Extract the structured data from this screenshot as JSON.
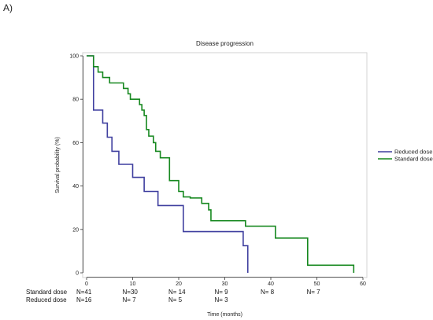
{
  "panel_label": "A)",
  "chart_data": {
    "type": "line",
    "title": "Disease progression",
    "xlabel": "Time (months)",
    "ylabel": "Survival probability (%)",
    "xlim": [
      0,
      60
    ],
    "ylim": [
      0,
      100
    ],
    "xticks": [
      0,
      10,
      20,
      30,
      40,
      50,
      60
    ],
    "yticks": [
      0,
      20,
      40,
      60,
      80,
      100
    ],
    "grid": false,
    "legend_position": "right",
    "series": [
      {
        "name": "Reduced dose",
        "color": "#3f3f9f",
        "x": [
          0,
          1.5,
          3.5,
          4.5,
          5.5,
          7,
          10,
          12.5,
          15.5,
          21,
          34,
          35
        ],
        "y": [
          100,
          75,
          69,
          62.5,
          56,
          50,
          44,
          37.5,
          31,
          19,
          12.5,
          0
        ]
      },
      {
        "name": "Standard dose",
        "color": "#16881f",
        "x": [
          0,
          1.5,
          2.5,
          3.5,
          5,
          8,
          9,
          9.5,
          10,
          11.5,
          12,
          12.5,
          13,
          13.5,
          14.5,
          15,
          16,
          18,
          20,
          21,
          22.5,
          25,
          26.5,
          27,
          34.5,
          41,
          48,
          58
        ],
        "y": [
          100,
          95,
          92.5,
          90,
          87.5,
          85,
          82.5,
          80,
          80,
          77.5,
          75,
          72.5,
          66,
          63,
          60,
          56,
          53,
          42.5,
          37.5,
          35,
          34.5,
          32,
          29,
          24,
          21.5,
          16,
          3.5,
          0
        ]
      }
    ],
    "at_risk": {
      "rows": [
        {
          "label": "Standard dose",
          "values": [
            "N=41",
            "N=30",
            "N= 14",
            "N= 9",
            "N= 8",
            "N= 7"
          ]
        },
        {
          "label": "Reduced dose",
          "values": [
            "N=16",
            "N= 7",
            "N=  5",
            "N= 3",
            "",
            ""
          ]
        }
      ],
      "x": [
        0,
        10,
        20,
        30,
        40,
        50
      ]
    }
  }
}
